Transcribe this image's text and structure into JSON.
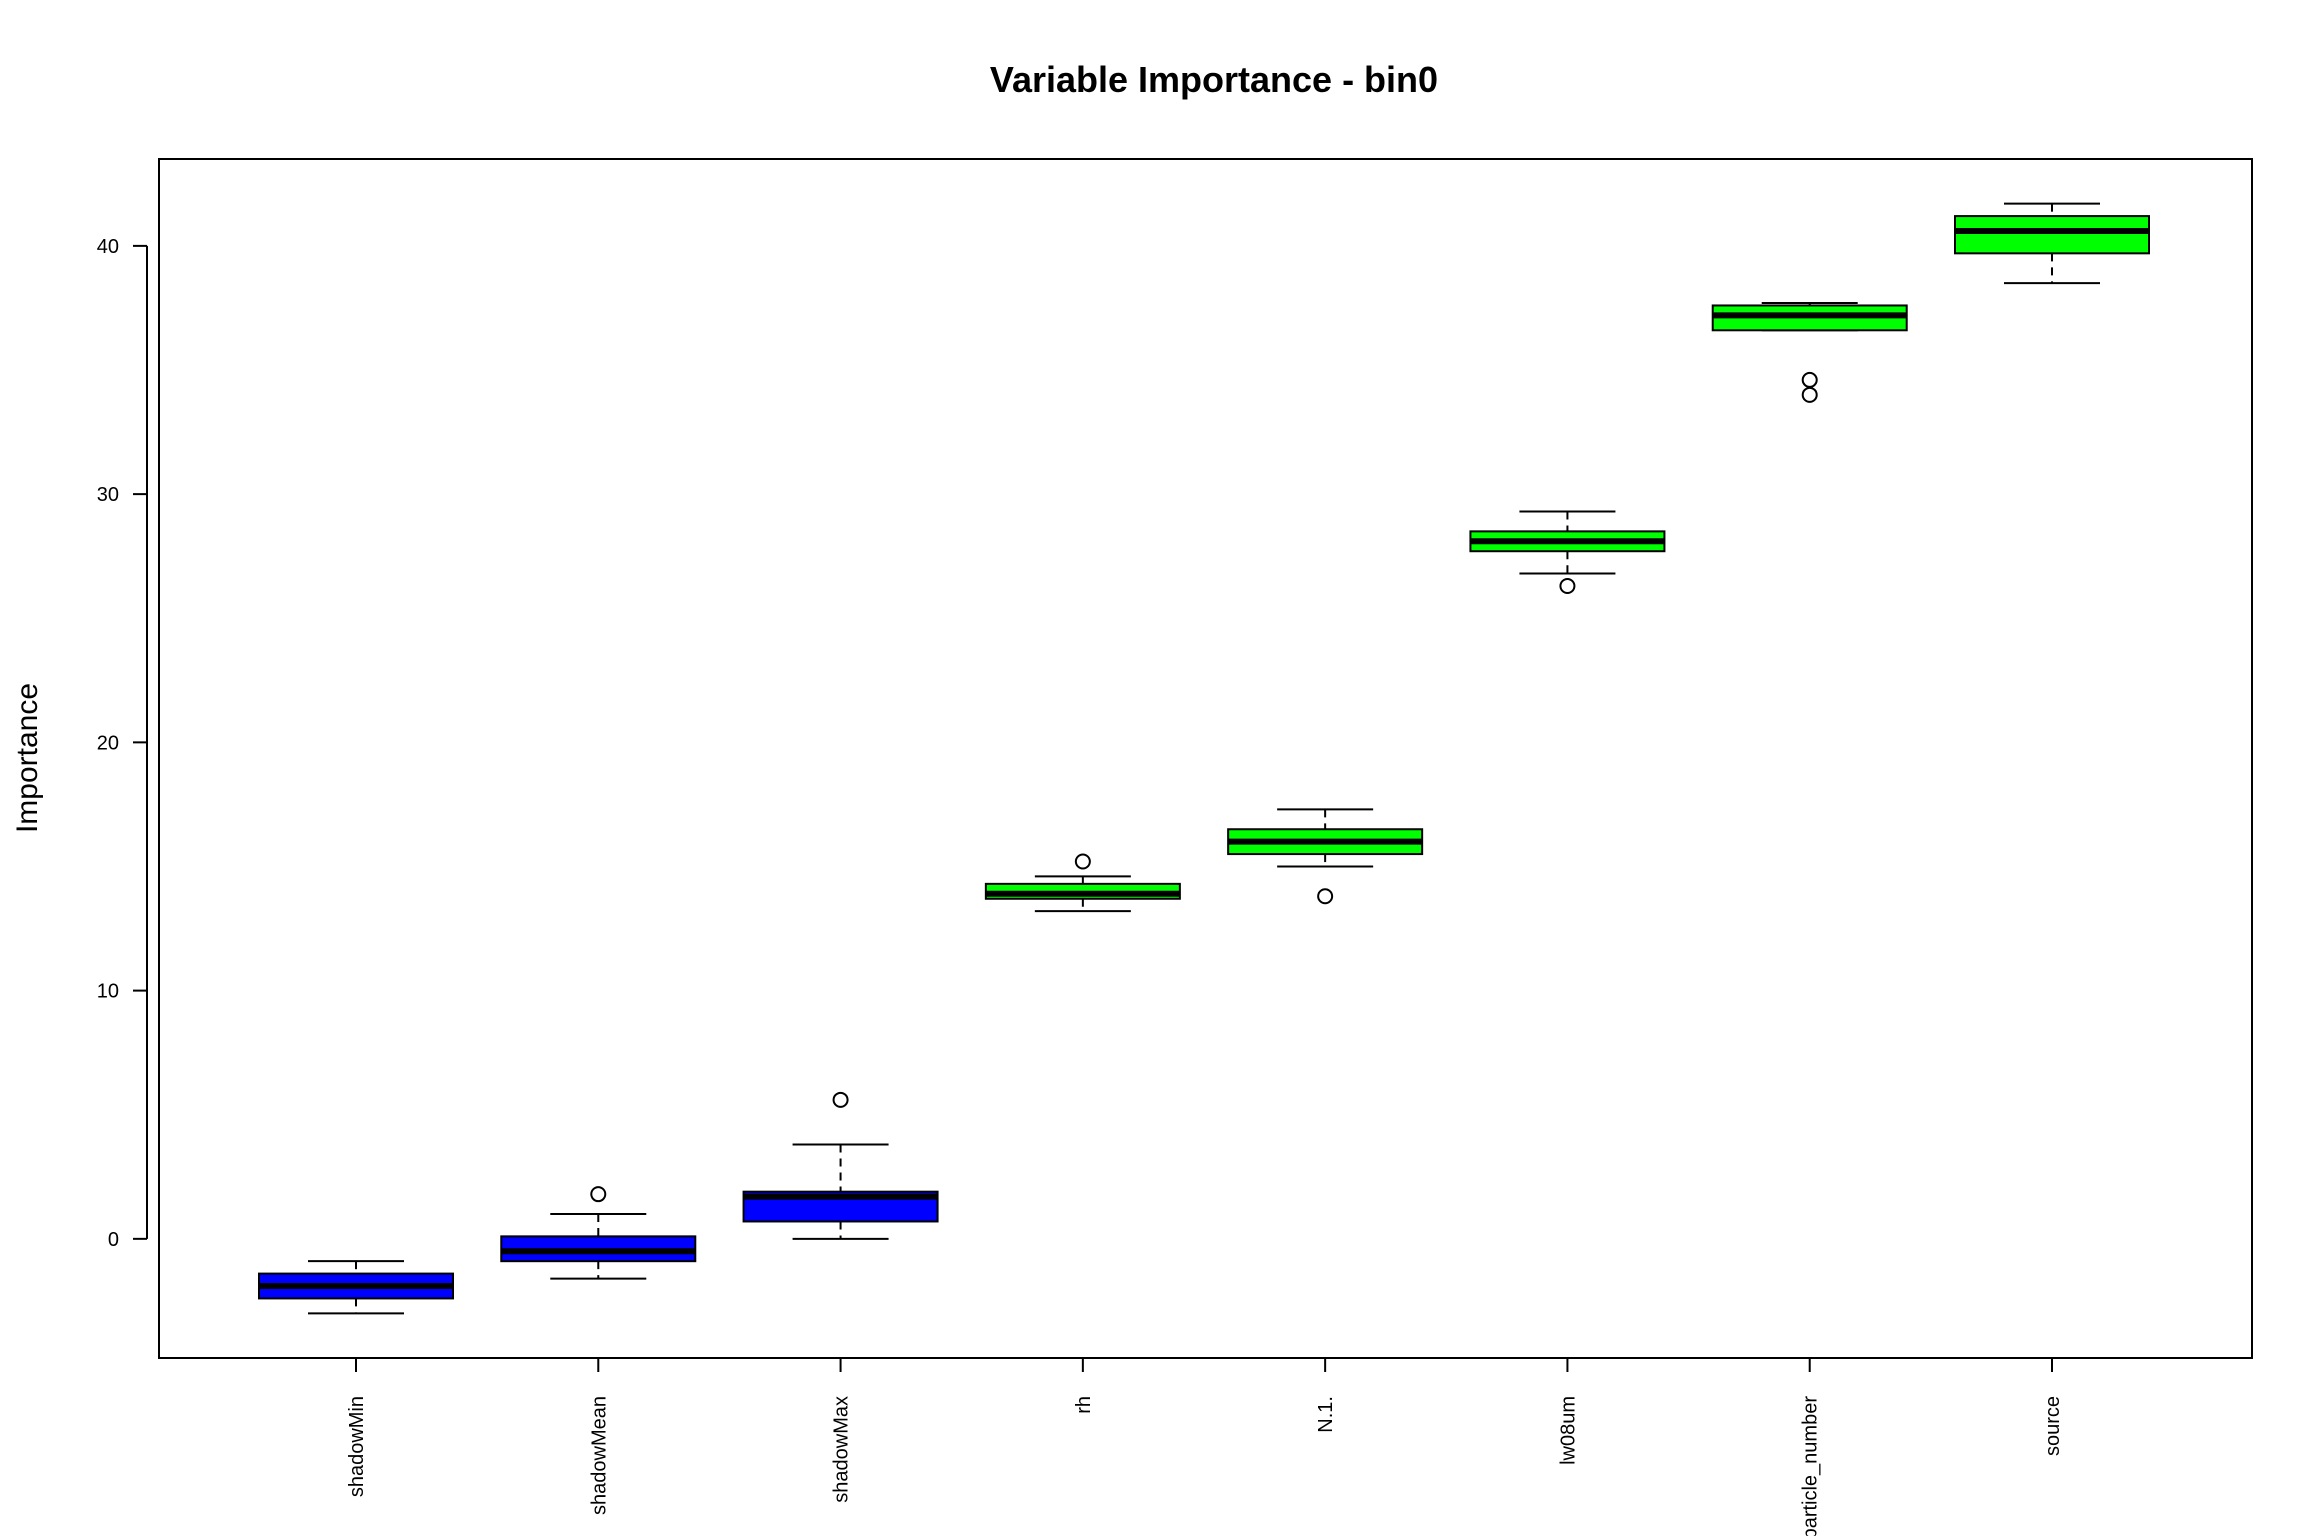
{
  "chart_data": {
    "type": "box",
    "title": "Variable Importance -  bin0",
    "xlabel": "",
    "ylabel": "Importance",
    "ylim": [
      -4.8,
      43.5
    ],
    "yticks": [
      0,
      10,
      20,
      30,
      40
    ],
    "grid": false,
    "legend": "none",
    "categories": [
      "shadowMin",
      "shadowMean",
      "shadowMax",
      "rh",
      "N.1.",
      "lw08um",
      "_particle_number",
      "source"
    ],
    "colors": {
      "shadow": "#0000ff",
      "confirmed": "#00ff00",
      "stroke": "#000000"
    },
    "boxes": [
      {
        "name": "shadowMin",
        "group": "shadow",
        "min": -3.0,
        "q1": -2.4,
        "median": -1.9,
        "q3": -1.4,
        "max": -0.9,
        "outliers": []
      },
      {
        "name": "shadowMean",
        "group": "shadow",
        "min": -1.6,
        "q1": -0.9,
        "median": -0.5,
        "q3": 0.1,
        "max": 1.0,
        "outliers": [
          1.8
        ]
      },
      {
        "name": "shadowMax",
        "group": "shadow",
        "min": 0.0,
        "q1": 0.7,
        "median": 1.7,
        "q3": 1.9,
        "max": 3.8,
        "outliers": [
          5.6
        ]
      },
      {
        "name": "rh",
        "group": "confirmed",
        "min": 13.2,
        "q1": 13.7,
        "median": 13.9,
        "q3": 14.3,
        "max": 14.6,
        "outliers": [
          15.2
        ]
      },
      {
        "name": "N.1.",
        "group": "confirmed",
        "min": 15.0,
        "q1": 15.5,
        "median": 16.0,
        "q3": 16.5,
        "max": 17.3,
        "outliers": [
          13.8
        ]
      },
      {
        "name": "lw08um",
        "group": "confirmed",
        "min": 26.8,
        "q1": 27.7,
        "median": 28.1,
        "q3": 28.5,
        "max": 29.3,
        "outliers": [
          26.3
        ]
      },
      {
        "name": "_particle_number",
        "group": "confirmed",
        "min": 36.6,
        "q1": 36.6,
        "median": 37.2,
        "q3": 37.6,
        "max": 37.7,
        "outliers": [
          34.6,
          34.0
        ]
      },
      {
        "name": "source",
        "group": "confirmed",
        "min": 38.5,
        "q1": 39.7,
        "median": 40.6,
        "q3": 41.2,
        "max": 41.7,
        "outliers": []
      }
    ]
  }
}
